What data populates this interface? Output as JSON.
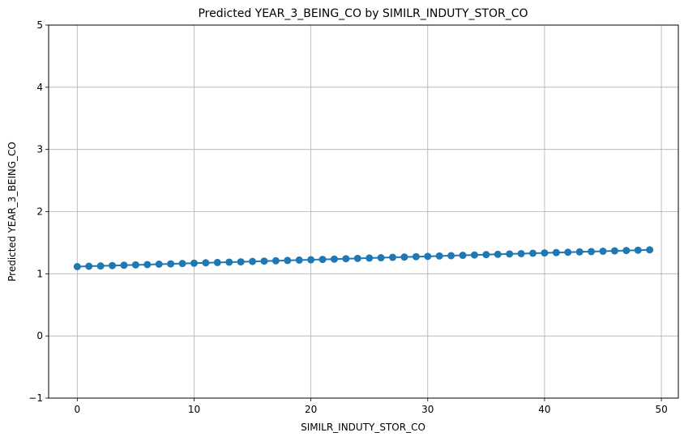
{
  "chart_data": {
    "type": "line",
    "title": "Predicted YEAR_3_BEING_CO by SIMILR_INDUTY_STOR_CO",
    "xlabel": "SIMILR_INDUTY_STOR_CO",
    "ylabel": "Predicted YEAR_3_BEING_CO",
    "xlim": [
      -2.45,
      51.45
    ],
    "ylim": [
      -1,
      5
    ],
    "x_ticks": [
      0,
      10,
      20,
      30,
      40,
      50
    ],
    "y_ticks": [
      -1,
      0,
      1,
      2,
      3,
      4,
      5
    ],
    "grid": true,
    "marker": "circle",
    "color": "#1f77b4",
    "series": [
      {
        "x": [
          0,
          1,
          2,
          3,
          4,
          5,
          6,
          7,
          8,
          9,
          10,
          11,
          12,
          13,
          14,
          15,
          16,
          17,
          18,
          19,
          20,
          21,
          22,
          23,
          24,
          25,
          26,
          27,
          28,
          29,
          30,
          31,
          32,
          33,
          34,
          35,
          36,
          37,
          38,
          39,
          40,
          41,
          42,
          43,
          44,
          45,
          46,
          47,
          48,
          49
        ],
        "y": [
          1.115,
          1.121,
          1.126,
          1.132,
          1.137,
          1.143,
          1.148,
          1.154,
          1.159,
          1.165,
          1.17,
          1.176,
          1.181,
          1.187,
          1.192,
          1.198,
          1.203,
          1.209,
          1.214,
          1.22,
          1.225,
          1.231,
          1.236,
          1.242,
          1.247,
          1.253,
          1.258,
          1.264,
          1.269,
          1.275,
          1.28,
          1.286,
          1.291,
          1.297,
          1.302,
          1.308,
          1.313,
          1.319,
          1.324,
          1.33,
          1.335,
          1.341,
          1.346,
          1.352,
          1.357,
          1.363,
          1.368,
          1.374,
          1.379,
          1.385
        ]
      }
    ]
  }
}
